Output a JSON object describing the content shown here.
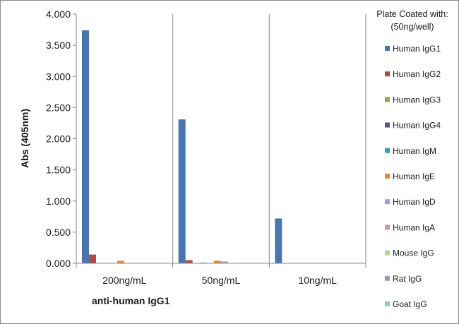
{
  "chart_data": {
    "type": "bar",
    "categories": [
      "200ng/mL",
      "50ng/mL",
      "10ng/mL"
    ],
    "xlabel": "anti-human IgG1",
    "ylabel": "Abs (405nm)",
    "ylim": [
      0,
      4
    ],
    "yticks": [
      "0.000",
      "0.500",
      "1.000",
      "1.500",
      "2.000",
      "2.500",
      "3.000",
      "3.500",
      "4.000"
    ],
    "legend_title": [
      "Plate Coated with:",
      "(50ng/well)"
    ],
    "legend_position": "right",
    "grid": "vertical",
    "series": [
      {
        "name": "Human IgG1",
        "color": "#4a76ad",
        "values": [
          3.74,
          2.31,
          0.72
        ]
      },
      {
        "name": "Human IgG2",
        "color": "#b04a45",
        "values": [
          0.14,
          0.05,
          0.0
        ]
      },
      {
        "name": "Human IgG3",
        "color": "#8aaa4b",
        "values": [
          0.0,
          0.0,
          0.0
        ]
      },
      {
        "name": "Human IgG4",
        "color": "#6c4f8c",
        "values": [
          0.0,
          0.01,
          0.0
        ]
      },
      {
        "name": "Human IgM",
        "color": "#3d9db3",
        "values": [
          0.0,
          0.0,
          0.0
        ]
      },
      {
        "name": "Human IgE",
        "color": "#e08b3a",
        "values": [
          0.04,
          0.04,
          0.0
        ]
      },
      {
        "name": "Human IgD",
        "color": "#93a7cf",
        "values": [
          0.0,
          0.03,
          0.0
        ]
      },
      {
        "name": "Human IgA",
        "color": "#d69896",
        "values": [
          0.0,
          0.0,
          0.0
        ]
      },
      {
        "name": "Mouse IgG",
        "color": "#b9d094",
        "values": [
          0.0,
          0.0,
          0.0
        ]
      },
      {
        "name": "Rat IgG",
        "color": "#a595bd",
        "values": [
          0.0,
          0.0,
          0.0
        ]
      },
      {
        "name": "Goat IgG",
        "color": "#8fc6d8",
        "values": [
          0.0,
          0.0,
          0.0
        ]
      }
    ]
  }
}
